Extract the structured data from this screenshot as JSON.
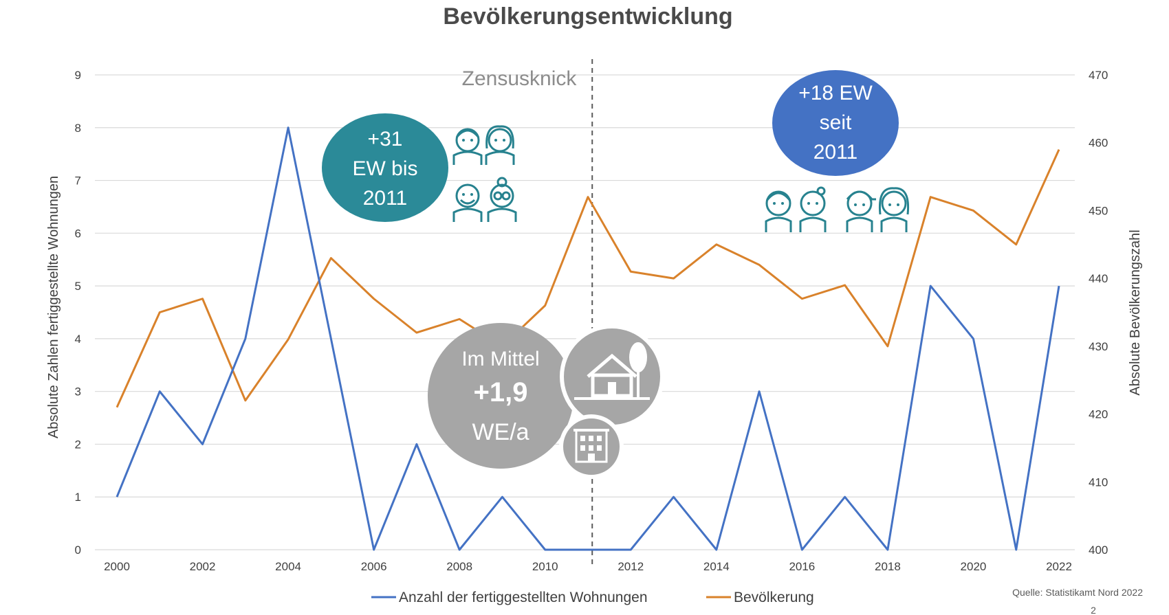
{
  "chart_data": {
    "type": "line",
    "title": "Bevölkerungsentwicklung",
    "x": [
      2000,
      2001,
      2002,
      2003,
      2004,
      2005,
      2006,
      2007,
      2008,
      2009,
      2010,
      2011,
      2012,
      2013,
      2014,
      2015,
      2016,
      2017,
      2018,
      2019,
      2020,
      2021,
      2022
    ],
    "x_tick_labels": [
      "2000",
      "2002",
      "2004",
      "2006",
      "2008",
      "2010",
      "2012",
      "2014",
      "2016",
      "2018",
      "2020",
      "2022"
    ],
    "ylabel_left": "Absolute Zahlen fertiggestellte Wohnungen",
    "ylabel_right": "Absolute Bevölkerungszahl",
    "ylim_left": [
      0,
      9
    ],
    "ylim_right": [
      400,
      470
    ],
    "yticks_left": [
      "0",
      "1",
      "2",
      "3",
      "4",
      "5",
      "6",
      "7",
      "8",
      "9"
    ],
    "yticks_right": [
      "400",
      "410",
      "420",
      "430",
      "440",
      "450",
      "460",
      "470"
    ],
    "grid": true,
    "legend_position": "bottom",
    "series": [
      {
        "name": "Anzahl der fertiggestellten Wohnungen",
        "axis": "left",
        "color": "#4472c4",
        "values": [
          1,
          3,
          2,
          4,
          8,
          4,
          0,
          2,
          0,
          1,
          0,
          0,
          0,
          1,
          0,
          3,
          0,
          1,
          0,
          5,
          4,
          0,
          5
        ]
      },
      {
        "name": "Bevölkerung",
        "axis": "right",
        "color": "#d9822b",
        "values": [
          421,
          435,
          437,
          422,
          431,
          443,
          437,
          432,
          434,
          430,
          436,
          452,
          441,
          440,
          445,
          442,
          437,
          439,
          430,
          452,
          450,
          445,
          459
        ]
      }
    ],
    "annotations": {
      "zensus_label": "Zensusknick",
      "zensus_year": 2011.1,
      "bubble_left": [
        "+31",
        "EW bis",
        "2011"
      ],
      "bubble_right": [
        "+18 EW",
        "seit",
        "2011"
      ],
      "bubble_mean_line1": "Im Mittel",
      "bubble_mean_line2": "+1,9",
      "bubble_mean_line3": "WE/a"
    },
    "source": "Quelle: Statistikamt Nord 2022",
    "page_number": "2"
  },
  "colors": {
    "teal_bubble": "#2b8a98",
    "blue_bubble": "#4472c4",
    "grey_bubble": "#a6a6a6",
    "icon_color": "#27828f"
  },
  "icons": [
    "family-elderly-icon",
    "children-icon",
    "house-tree-icon",
    "apartment-building-icon"
  ]
}
